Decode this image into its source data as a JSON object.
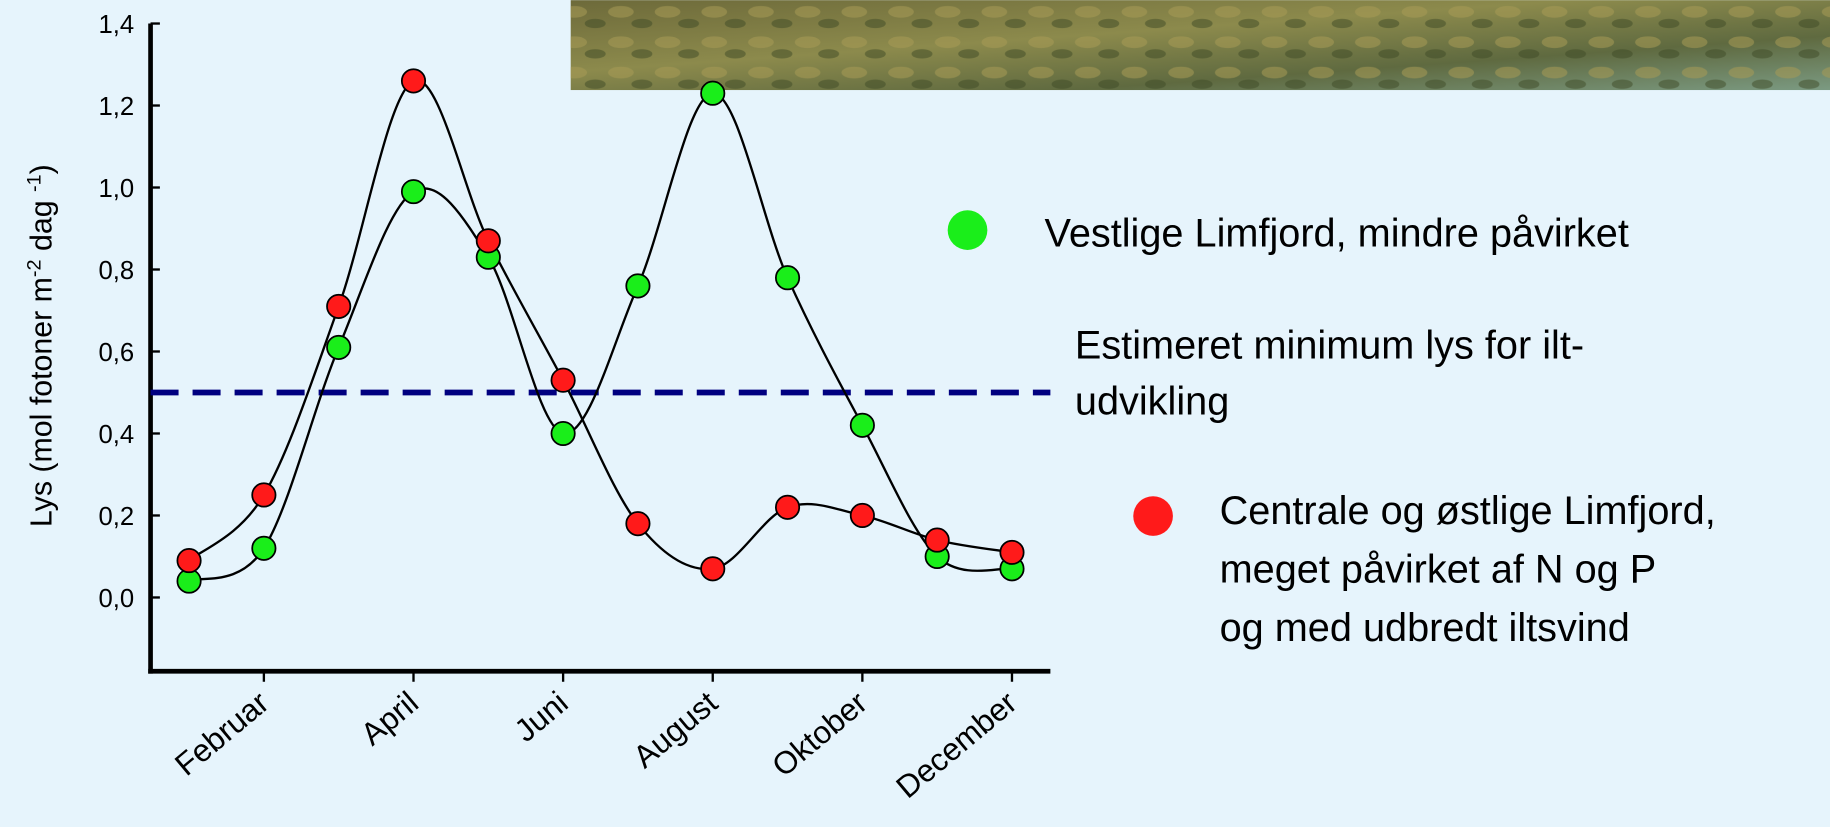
{
  "chart_data": {
    "type": "line",
    "y_label": [
      "Lys (mol fotoner m",
      "-2",
      " dag ",
      "-1",
      ")"
    ],
    "categories": [
      null,
      "Februar",
      null,
      "April",
      null,
      "Juni",
      null,
      "August",
      null,
      "Oktober",
      null,
      "December"
    ],
    "ylim": [
      -0.18,
      1.4
    ],
    "yticks": [
      {
        "value": 0,
        "label": "0,0"
      },
      {
        "value": 0.2,
        "label": "0,2"
      },
      {
        "value": 0.4,
        "label": "0,4"
      },
      {
        "value": 0.6,
        "label": "0,6"
      },
      {
        "value": 0.8,
        "label": "0,8"
      },
      {
        "value": 1.0,
        "label": "1,0"
      },
      {
        "value": 1.2,
        "label": "1,2"
      },
      {
        "value": 1.4,
        "label": "1,4"
      }
    ],
    "series": [
      {
        "name": [
          "Vestlige Limfjord, mindre påvirket"
        ],
        "color": "#1aee1a",
        "values": [
          0.04,
          0.12,
          0.61,
          0.99,
          0.83,
          0.4,
          0.76,
          1.23,
          0.78,
          0.42,
          0.1,
          0.07
        ]
      },
      {
        "name": [
          "Centrale og østlige Limfjord,",
          "meget påvirket af N og P",
          "og med udbredt iltsvind"
        ],
        "color": "#ff1a1a",
        "values": [
          0.09,
          0.25,
          0.71,
          1.26,
          0.87,
          0.53,
          0.18,
          0.07,
          0.22,
          0.2,
          0.14,
          0.11
        ]
      }
    ],
    "threshold": {
      "value": 0.5,
      "label": [
        "Estimeret minimum lys for ilt-",
        "udvikling"
      ],
      "color": "#000080"
    }
  }
}
